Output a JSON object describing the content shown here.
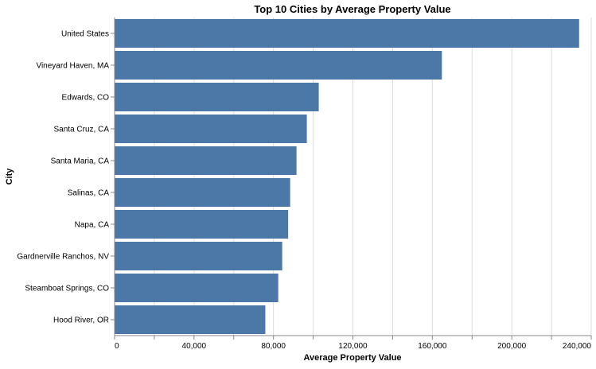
{
  "chart_data": {
    "type": "bar",
    "orientation": "horizontal",
    "title": "Top 10 Cities by Average Property Value",
    "xlabel": "Average Property Value",
    "ylabel": "City",
    "categories": [
      "United States",
      "Vineyard Haven, MA",
      "Edwards, CO",
      "Santa Cruz, CA",
      "Santa Maria, CA",
      "Salinas, CA",
      "Napa, CA",
      "Gardnerville Ranchos, NV",
      "Steamboat Springs, CO",
      "Hood River, OR"
    ],
    "values": [
      233900,
      164800,
      102800,
      96800,
      91600,
      88400,
      87400,
      84400,
      82400,
      75900
    ],
    "xlim": [
      0,
      240000
    ],
    "x_ticks": [
      0,
      20000,
      40000,
      60000,
      80000,
      100000,
      120000,
      140000,
      160000,
      180000,
      200000,
      220000,
      240000
    ],
    "x_tick_labels": [
      "0",
      "",
      "40,000",
      "",
      "80,000",
      "",
      "120,000",
      "",
      "160,000",
      "",
      "200,000",
      "",
      "240,000"
    ],
    "bar_color": "#4c78a8",
    "grid": true,
    "legend": "none"
  }
}
